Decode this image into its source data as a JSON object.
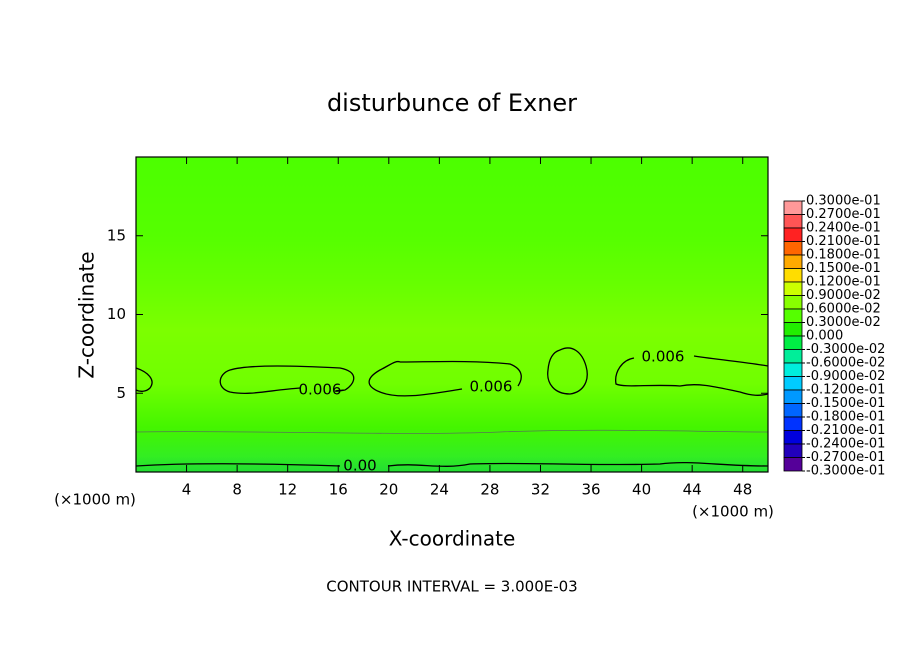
{
  "chart_data": {
    "type": "contour",
    "title": "disturbunce of Exner",
    "x_label": "X-coordinate",
    "y_label": "Z-coordinate",
    "x_unit": "(×1000 m)",
    "y_unit": "(×1000 m)",
    "footer": "CONTOUR INTERVAL = 3.000E-03",
    "xlim": [
      0,
      50
    ],
    "ylim": [
      0,
      20
    ],
    "xticks": [
      4,
      8,
      12,
      16,
      20,
      24,
      28,
      32,
      36,
      40,
      44,
      48
    ],
    "yticks": [
      5,
      10,
      15
    ],
    "contour_labels": [
      "0.006",
      "0.006",
      "0.006",
      "0.00"
    ],
    "colorbar": {
      "ticks": [
        {
          "value": 0.03,
          "label": "0.3000e-01"
        },
        {
          "value": 0.027,
          "label": "0.2700e-01"
        },
        {
          "value": 0.024,
          "label": "0.2400e-01"
        },
        {
          "value": 0.021,
          "label": "0.2100e-01"
        },
        {
          "value": 0.018,
          "label": "0.1800e-01"
        },
        {
          "value": 0.015,
          "label": "0.1500e-01"
        },
        {
          "value": 0.012,
          "label": "0.1200e-01"
        },
        {
          "value": 0.009,
          "label": "0.9000e-02"
        },
        {
          "value": 0.006,
          "label": "0.6000e-02"
        },
        {
          "value": 0.003,
          "label": "0.3000e-02"
        },
        {
          "value": 0,
          "label": "0.000"
        },
        {
          "value": -0.003,
          "label": "-0.3000e-02"
        },
        {
          "value": -0.006,
          "label": "-0.6000e-02"
        },
        {
          "value": -0.009,
          "label": "-0.9000e-02"
        },
        {
          "value": -0.012,
          "label": "-0.1200e-01"
        },
        {
          "value": -0.015,
          "label": "-0.1500e-01"
        },
        {
          "value": -0.018,
          "label": "-0.1800e-01"
        },
        {
          "value": -0.021,
          "label": "-0.2100e-01"
        },
        {
          "value": -0.024,
          "label": "-0.2400e-01"
        },
        {
          "value": -0.027,
          "label": "-0.2700e-01"
        },
        {
          "value": -0.03,
          "label": "-0.3000e-01"
        }
      ],
      "colors": [
        "#ff9999",
        "#ff5555",
        "#ff2222",
        "#ff6600",
        "#ffaa00",
        "#ffdd00",
        "#ccff00",
        "#88ff00",
        "#55ff00",
        "#22ee00",
        "#00ee44",
        "#00ee99",
        "#00eedd",
        "#00ccff",
        "#0099ff",
        "#0066ff",
        "#0033ff",
        "#0000dd",
        "#2200bb",
        "#550099"
      ]
    }
  }
}
